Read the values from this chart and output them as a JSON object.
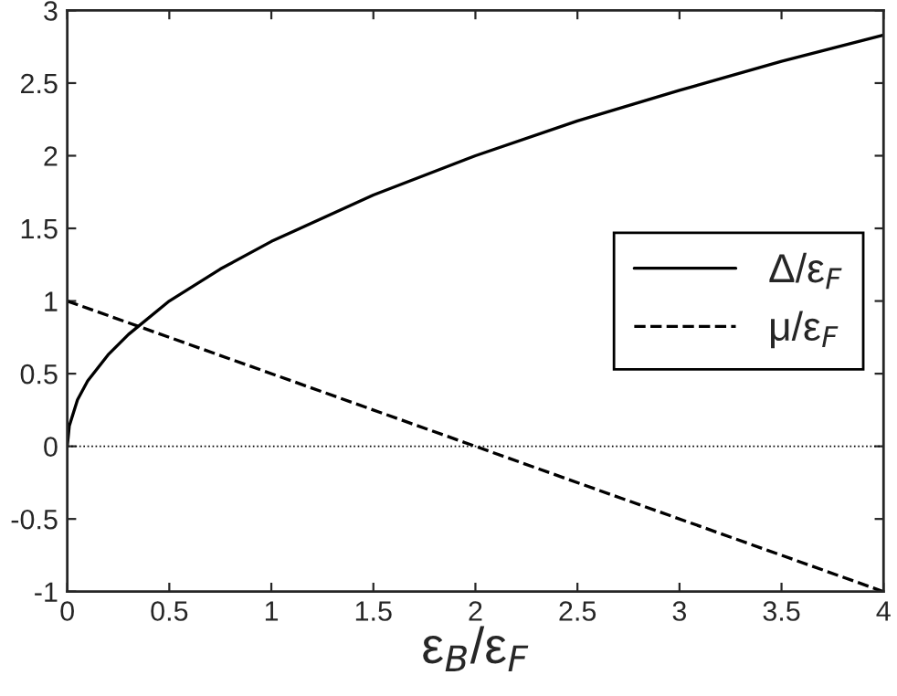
{
  "chart_data": {
    "type": "line",
    "xlabel": "ε$_{B}$/ε$_{F}$",
    "xlim": [
      0,
      4
    ],
    "ylim": [
      -1,
      3
    ],
    "xticks": [
      0,
      0.5,
      1,
      1.5,
      2,
      2.5,
      3,
      3.5,
      4
    ],
    "yticks": [
      -1,
      -0.5,
      0,
      0.5,
      1,
      1.5,
      2,
      2.5,
      3
    ],
    "series": [
      {
        "name": "Δ/ε$_{F}$",
        "color": "#000000",
        "line_style": "solid",
        "x": [
          0,
          0.01,
          0.05,
          0.1,
          0.2,
          0.3,
          0.5,
          0.75,
          1,
          1.5,
          2,
          2.5,
          3,
          3.5,
          4
        ],
        "values": [
          0,
          0.14,
          0.32,
          0.45,
          0.63,
          0.77,
          1.0,
          1.22,
          1.41,
          1.73,
          2.0,
          2.24,
          2.45,
          2.65,
          2.83
        ]
      },
      {
        "name": "μ/ε$_{F}$",
        "color": "#000000",
        "line_style": "dashed",
        "x": [
          0,
          4
        ],
        "values": [
          1,
          -1
        ]
      }
    ],
    "ref_lines": [
      {
        "axis": "y",
        "value": 0,
        "color": "#000000",
        "line_style": "dotted"
      }
    ],
    "legend": "center right",
    "grid": false,
    "marker": "none"
  }
}
